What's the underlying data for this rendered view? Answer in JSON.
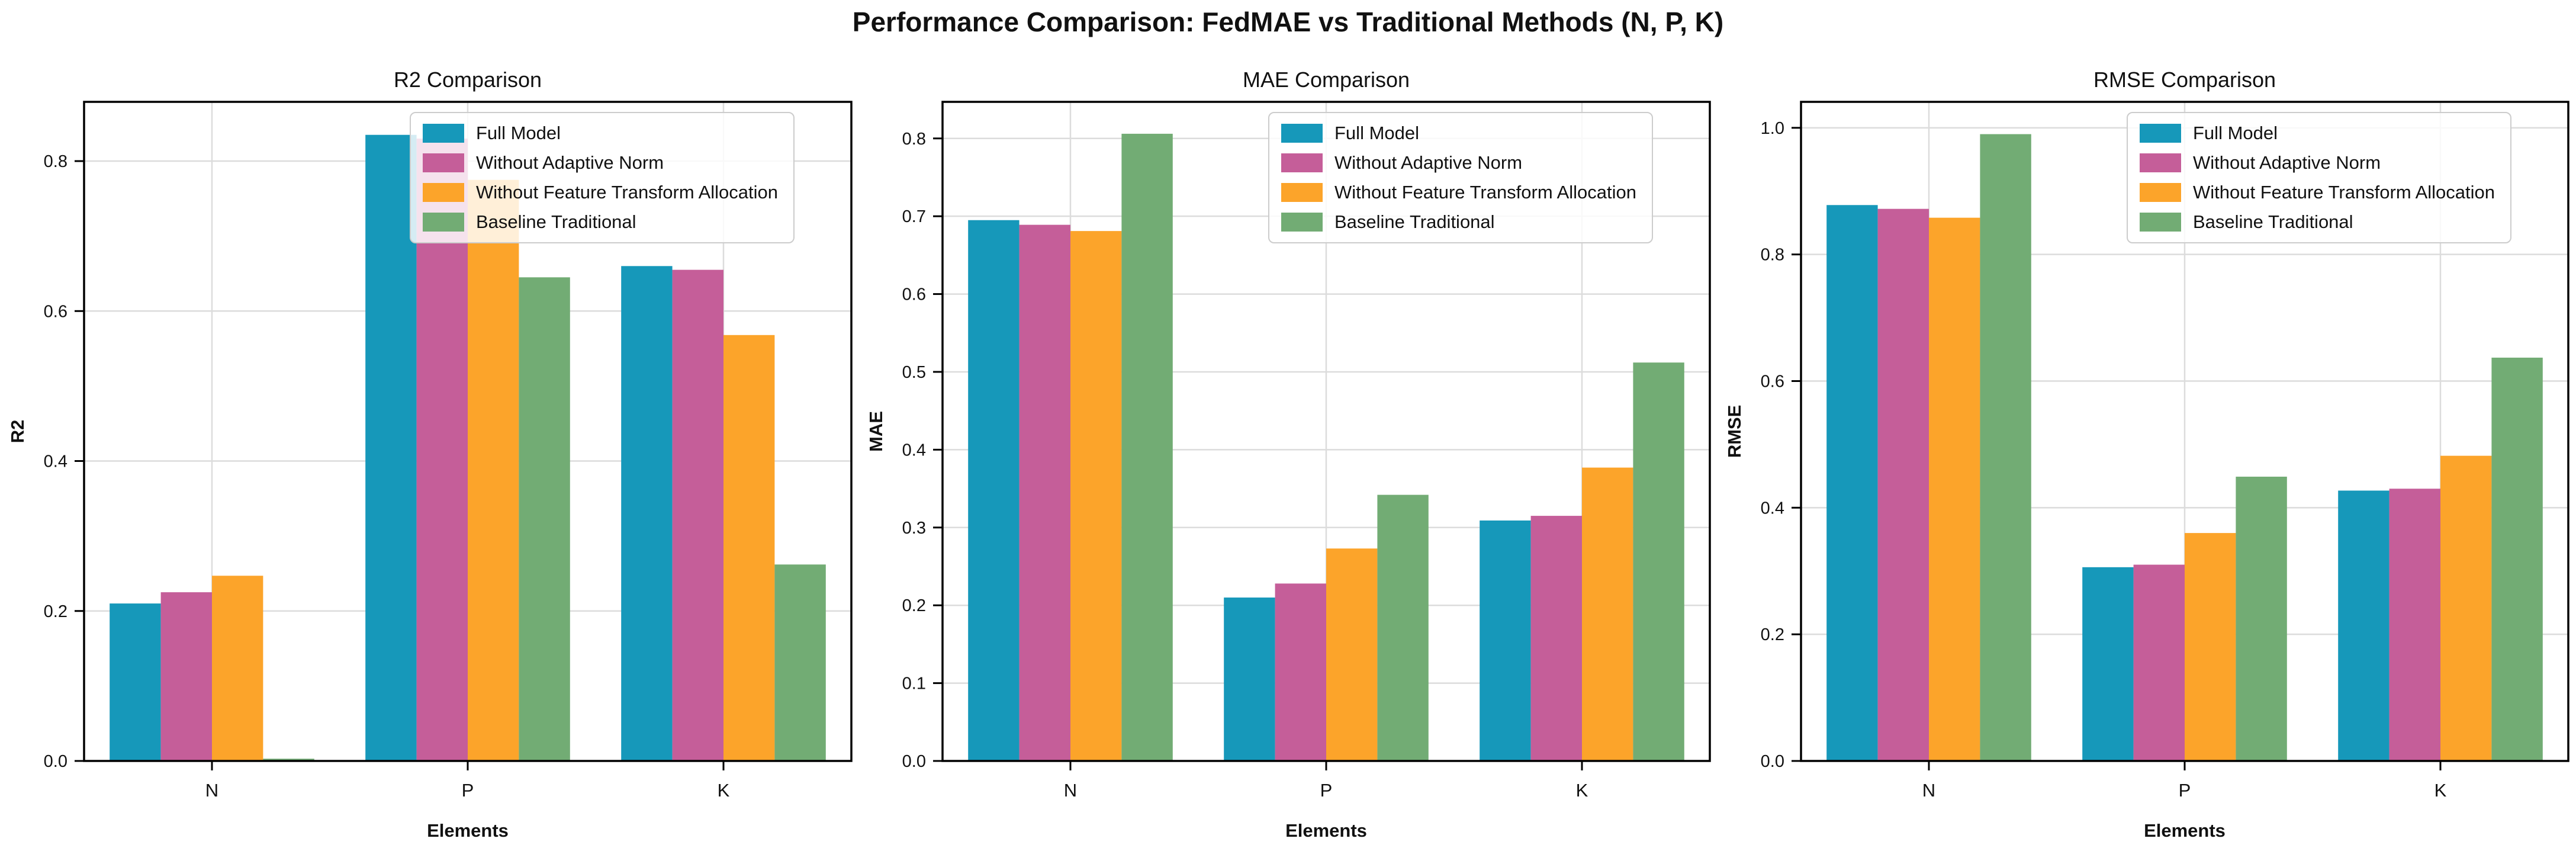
{
  "suptitle": "Performance Comparison: FedMAE vs Traditional Methods (N, P, K)",
  "series_colors": [
    "#1698ba",
    "#c55e99",
    "#fca42a",
    "#72ac74"
  ],
  "grid_color": "#dcdcdc",
  "spine_color": "#000000",
  "chart_data": [
    {
      "type": "bar",
      "title": "R2 Comparison",
      "xlabel": "Elements",
      "ylabel": "R2",
      "categories": [
        "N",
        "P",
        "K"
      ],
      "ylim": [
        0,
        0.879
      ],
      "yticks": [
        0.0,
        0.2,
        0.4,
        0.6,
        0.8
      ],
      "grid": true,
      "legend_position": "overlapping P group, upper area",
      "series": [
        {
          "name": "Full Model",
          "values": [
            0.21,
            0.835,
            0.66
          ]
        },
        {
          "name": "Without Adaptive Norm",
          "values": [
            0.225,
            0.83,
            0.655
          ]
        },
        {
          "name": "Without Feature Transform Allocation",
          "values": [
            0.247,
            0.775,
            0.568
          ]
        },
        {
          "name": "Baseline Traditional",
          "values": [
            0.003,
            0.645,
            0.262
          ]
        }
      ]
    },
    {
      "type": "bar",
      "title": "MAE Comparison",
      "xlabel": "Elements",
      "ylabel": "MAE",
      "categories": [
        "N",
        "P",
        "K"
      ],
      "ylim": [
        0,
        0.847
      ],
      "yticks": [
        0.0,
        0.1,
        0.2,
        0.3,
        0.4,
        0.5,
        0.6,
        0.7,
        0.8
      ],
      "grid": true,
      "legend_position": "upper right area",
      "series": [
        {
          "name": "Full Model",
          "values": [
            0.695,
            0.21,
            0.309
          ]
        },
        {
          "name": "Without Adaptive Norm",
          "values": [
            0.689,
            0.228,
            0.315
          ]
        },
        {
          "name": "Without Feature Transform Allocation",
          "values": [
            0.681,
            0.273,
            0.377
          ]
        },
        {
          "name": "Baseline Traditional",
          "values": [
            0.806,
            0.342,
            0.512
          ]
        }
      ]
    },
    {
      "type": "bar",
      "title": "RMSE Comparison",
      "xlabel": "Elements",
      "ylabel": "RMSE",
      "categories": [
        "N",
        "P",
        "K"
      ],
      "ylim": [
        0,
        1.041
      ],
      "yticks": [
        0.0,
        0.2,
        0.4,
        0.6,
        0.8,
        1.0
      ],
      "grid": true,
      "legend_position": "upper right area",
      "series": [
        {
          "name": "Full Model",
          "values": [
            0.878,
            0.306,
            0.427
          ]
        },
        {
          "name": "Without Adaptive Norm",
          "values": [
            0.872,
            0.31,
            0.43
          ]
        },
        {
          "name": "Without Feature Transform Allocation",
          "values": [
            0.858,
            0.36,
            0.482
          ]
        },
        {
          "name": "Baseline Traditional",
          "values": [
            0.99,
            0.449,
            0.637
          ]
        }
      ]
    }
  ]
}
